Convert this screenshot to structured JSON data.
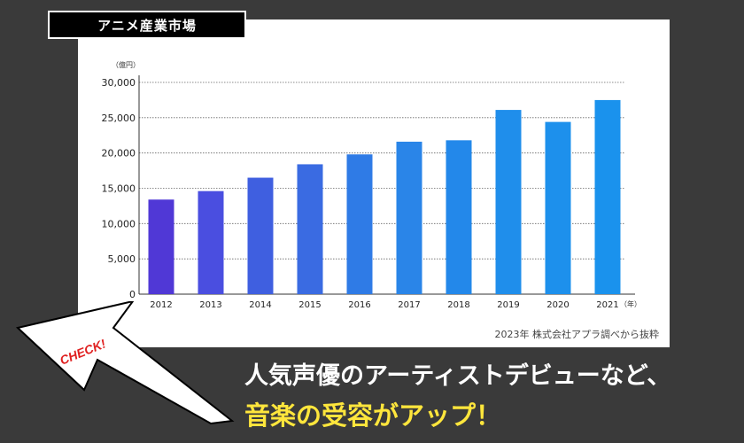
{
  "header": {
    "title": "アニメ産業市場"
  },
  "chart_data": {
    "type": "bar",
    "y_unit": "（億円）",
    "x_unit": "（年）",
    "categories": [
      "2012",
      "2013",
      "2014",
      "2015",
      "2016",
      "2017",
      "2018",
      "2019",
      "2020",
      "2021"
    ],
    "values": [
      13400,
      14600,
      16500,
      18400,
      19800,
      21600,
      21800,
      26100,
      24400,
      27500
    ],
    "ylim": [
      0,
      30000
    ],
    "yticks": [
      "0",
      "5,000",
      "10,000",
      "15,000",
      "20,000",
      "25,000",
      "30,000"
    ],
    "ytick_values": [
      0,
      5000,
      10000,
      15000,
      20000,
      25000,
      30000
    ],
    "grid": true,
    "colors": [
      "#5038d6",
      "#4a4ee0",
      "#3f5fe0",
      "#3a6be2",
      "#2f7be6",
      "#2a85e8",
      "#2388ea",
      "#1f8eeb",
      "#1d90ec",
      "#1a92ed"
    ]
  },
  "source": "2023年 株式会社アプラ調べから抜粋",
  "badge": {
    "label": "CHECK!"
  },
  "headline": {
    "line1": "人気声優のアーティストデビューなど、",
    "line2": "音楽の受容がアップ！"
  }
}
